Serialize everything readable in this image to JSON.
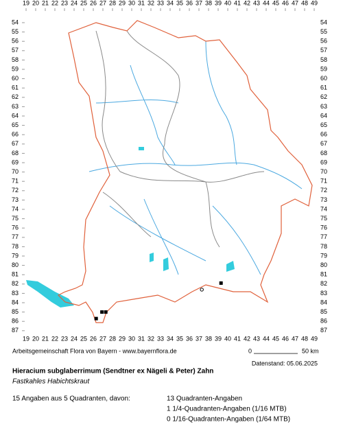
{
  "map": {
    "columns": [
      19,
      20,
      21,
      22,
      23,
      24,
      25,
      26,
      27,
      28,
      29,
      30,
      31,
      32,
      33,
      34,
      35,
      36,
      37,
      38,
      39,
      40,
      41,
      42,
      43,
      44,
      45,
      46,
      47,
      48,
      49
    ],
    "rows": [
      54,
      55,
      56,
      57,
      58,
      59,
      60,
      61,
      62,
      63,
      64,
      65,
      66,
      67,
      68,
      69,
      70,
      71,
      72,
      73,
      74,
      75,
      76,
      77,
      78,
      79,
      80,
      81,
      82,
      83,
      84,
      85,
      86,
      87
    ],
    "squares": [
      {
        "col": 26.9,
        "row": 85.0
      },
      {
        "col": 27.3,
        "row": 85.0
      },
      {
        "col": 26.3,
        "row": 85.7
      },
      {
        "col": 39.3,
        "row": 81.9
      }
    ],
    "circles": [
      {
        "col": 37.3,
        "row": 82.6
      }
    ]
  },
  "footer": {
    "credit": "Arbeitsgemeinschaft Flora von Bayern - www.bayernflora.de",
    "scale_start": "0",
    "scale_end": "50 km",
    "date": "Datenstand: 05.06.2025"
  },
  "species": {
    "name": "Hieracium subglaberrimum (Sendtner ex Nägeli & Peter) Zahn",
    "common": "Fastkahles Habichtskraut"
  },
  "summary": {
    "total": "15 Angaben aus 5 Quadranten, davon:",
    "lines": [
      "13 Quadranten-Angaben",
      "1 1/4-Quadranten-Angaben (1/16 MTB)",
      "0 1/16-Quadranten-Angaben (1/64 MTB)"
    ]
  }
}
